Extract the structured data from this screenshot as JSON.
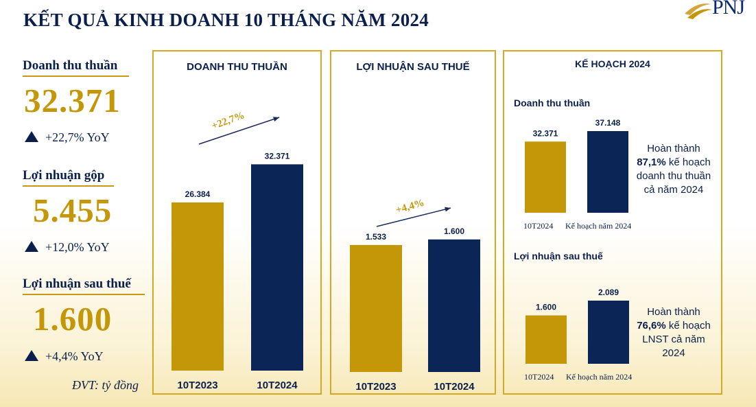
{
  "header": {
    "title": "KẾT QUẢ KINH DOANH 10 THÁNG NĂM 2024",
    "logo_text": "PNJ"
  },
  "kpis": [
    {
      "label": "Doanh thu thuần",
      "value": "32.371",
      "yoy": "+22,7% YoY"
    },
    {
      "label": "Lợi nhuận gộp",
      "value": "5.455",
      "yoy": "+12,0% YoY"
    },
    {
      "label": "Lợi nhuận sau thuế",
      "value": "1.600",
      "yoy": "+4,4% YoY"
    }
  ],
  "unit_note": "ĐVT: tỷ đồng",
  "colors": {
    "gold": "#c39708",
    "navy": "#0b2557",
    "border": "#d8a820"
  },
  "chart_data": [
    {
      "type": "bar",
      "title": "DOANH THU THUẦN",
      "categories": [
        "10T2023",
        "10T2024"
      ],
      "values": [
        26384,
        32371
      ],
      "value_labels": [
        "26.384",
        "32.371"
      ],
      "growth_label": "+22,7%",
      "ylim": [
        0,
        35000
      ]
    },
    {
      "type": "bar",
      "title": "LỢI NHUẬN SAU THUẾ",
      "categories": [
        "10T2023",
        "10T2024"
      ],
      "values": [
        1533,
        1600
      ],
      "value_labels": [
        "1.533",
        "1.600"
      ],
      "growth_label": "+4,4%",
      "ylim": [
        0,
        2800
      ]
    },
    {
      "type": "bar",
      "title": "Doanh thu thuần",
      "categories": [
        "10T2024",
        "Kế hoạch năm 2024"
      ],
      "values": [
        32371,
        37148
      ],
      "value_labels": [
        "32.371",
        "37.148"
      ],
      "ylim": [
        0,
        37148
      ]
    },
    {
      "type": "bar",
      "title": "Lợi nhuận sau thuế",
      "categories": [
        "10T2024",
        "Kế hoạch năm 2024"
      ],
      "values": [
        1600,
        2089
      ],
      "value_labels": [
        "1.600",
        "2.089"
      ],
      "ylim": [
        0,
        2089
      ]
    }
  ],
  "plan": {
    "title": "KẾ HOẠCH 2024",
    "revenue_note": {
      "line1": "Hoàn thành",
      "pct": "87,1%",
      "line2": " kế hoạch",
      "line3": "doanh thu thuần",
      "line4": "cả năm 2024"
    },
    "profit_note": {
      "line1": "Hoàn thành",
      "pct": "76,6%",
      "line2": " kế hoạch",
      "line3": "LNST cả năm",
      "line4": "2024"
    }
  }
}
